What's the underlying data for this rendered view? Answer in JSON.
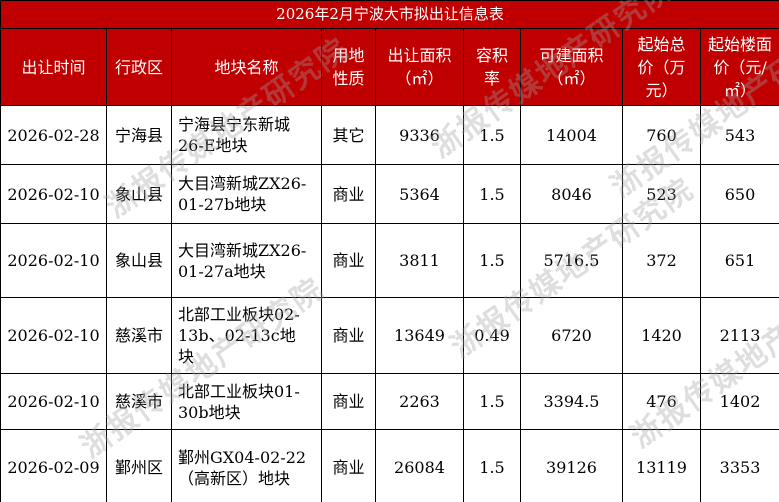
{
  "title": "2026年2月宁波大市拟出让信息表",
  "headers": [
    [
      "出让时间"
    ],
    [
      "行政区"
    ],
    [
      "地块名称"
    ],
    [
      "用地",
      "性质"
    ],
    [
      "出让面积",
      "（㎡）"
    ],
    [
      "容积",
      "率"
    ],
    [
      "可建面积",
      "（㎡）"
    ],
    [
      "起始总",
      "价（万",
      "元）"
    ],
    [
      "起始楼面",
      "价（元/",
      "㎡）"
    ]
  ],
  "rows": [
    {
      "date": "2026-02-28",
      "district": "宁海县",
      "name": [
        "宁海县宁东新城",
        "26-E地块"
      ],
      "use": "其它",
      "area": "9336",
      "far": "1.5",
      "build": "14004",
      "total": "760",
      "unit": "543"
    },
    {
      "date": "2026-02-10",
      "district": "象山县",
      "name": [
        "大目湾新城ZX26-",
        "01-27b地块"
      ],
      "use": "商业",
      "area": "5364",
      "far": "1.5",
      "build": "8046",
      "total": "523",
      "unit": "650"
    },
    {
      "date": "2026-02-10",
      "district": "象山县",
      "name": [
        "大目湾新城ZX26-",
        "01-27a地块"
      ],
      "use": "商业",
      "area": "3811",
      "far": "1.5",
      "build": "5716.5",
      "total": "372",
      "unit": "651"
    },
    {
      "date": "2026-02-10",
      "district": "慈溪市",
      "name": [
        "北部工业板块02-",
        "13b、02-13c地",
        "块"
      ],
      "use": "商业",
      "area": "13649",
      "far": "0.49",
      "build": "6720",
      "total": "1420",
      "unit": "2113"
    },
    {
      "date": "2026-02-10",
      "district": "慈溪市",
      "name": [
        "北部工业板块01-",
        "30b地块"
      ],
      "use": "商业",
      "area": "2263",
      "far": "1.5",
      "build": "3394.5",
      "total": "476",
      "unit": "1402"
    },
    {
      "date": "2026-02-09",
      "district": "鄞州区",
      "name": [
        "鄞州GX04-02-22",
        "（高新区）地块"
      ],
      "use": "商业",
      "area": "26084",
      "far": "1.5",
      "build": "39126",
      "total": "13119",
      "unit": "3353"
    }
  ],
  "watermark": "浙报传媒地产研究院",
  "colors": {
    "header_bg": "#c00000",
    "header_text": "#ffffff"
  }
}
